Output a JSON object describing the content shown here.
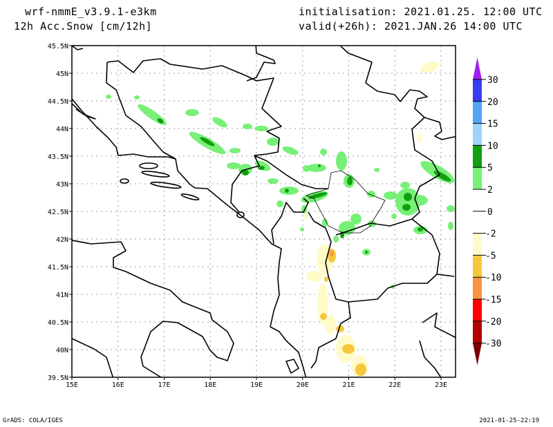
{
  "header": {
    "model": "wrf-nmmE_v3.9.1-e3km",
    "field": "12h Acc.Snow [cm/12h]",
    "initialisation": "initialisation: 2021.01.25.  12:00 UTC",
    "valid": "valid(+26h): 2021.JAN.26 14:00 UTC"
  },
  "map": {
    "lat_labels": [
      "45.5N",
      "45N",
      "44.5N",
      "44N",
      "43.5N",
      "43N",
      "42.5N",
      "42N",
      "41.5N",
      "41N",
      "40.5N",
      "40N",
      "39.5N"
    ],
    "lon_labels": [
      "15E",
      "16E",
      "17E",
      "18E",
      "19E",
      "20E",
      "21E",
      "22E",
      "23E"
    ]
  },
  "colorbar": {
    "labels": [
      "30",
      "20",
      "15",
      "10",
      "5",
      "2",
      "0",
      "-2",
      "-5",
      "-10",
      "-15",
      "-20",
      "-30"
    ],
    "over_color": "#a020f0",
    "under_color": "#7d0000",
    "colors": [
      "#3c3cf0",
      "#50a5f5",
      "#a0d2fa",
      "#10a010",
      "#78f078",
      "#ffffff",
      "#ffffff",
      "#fffac8",
      "#f5c83c",
      "#fa9641",
      "#ff0000",
      "#b40000"
    ]
  },
  "footer": {
    "left": "GrADS: COLA/IGES",
    "right": "2021-01-25-22:19"
  }
}
